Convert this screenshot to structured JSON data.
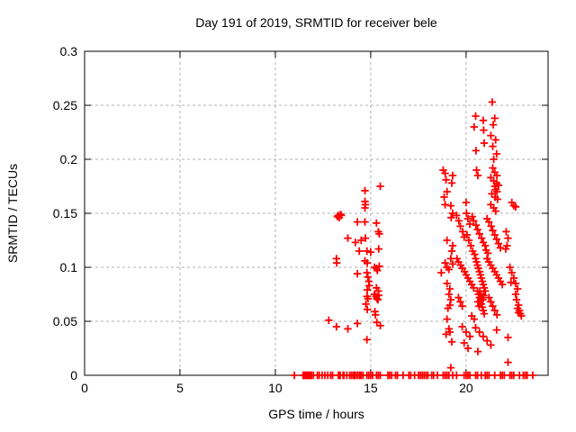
{
  "chart_data": {
    "type": "scatter",
    "title": "Day 191 of 2019, SRMTID for receiver bele",
    "xlabel": "GPS time / hours",
    "ylabel": "SRMTID / TECUs",
    "xlim": [
      0,
      24.3
    ],
    "ylim": [
      0,
      0.3
    ],
    "x_ticks": [
      0,
      5,
      10,
      15,
      20
    ],
    "x_tick_labels": [
      "0",
      "5",
      "10",
      "15",
      "20"
    ],
    "y_ticks": [
      0,
      0.05,
      0.1,
      0.15,
      0.2,
      0.25,
      0.3
    ],
    "y_tick_labels": [
      "0",
      "0.05",
      "0.1",
      "0.15",
      "0.2",
      "0.25",
      "0.3"
    ],
    "grid": true,
    "legend": "none",
    "marker": "plus",
    "marker_color": "#ff0000",
    "points": [
      [
        13.25,
        0.147
      ],
      [
        13.3,
        0.148
      ],
      [
        13.35,
        0.146
      ],
      [
        13.42,
        0.149
      ],
      [
        13.45,
        0.148
      ],
      [
        13.2,
        0.108
      ],
      [
        13.22,
        0.104
      ],
      [
        13.8,
        0.127
      ],
      [
        12.8,
        0.051
      ],
      [
        13.2,
        0.045
      ],
      [
        13.8,
        0.043
      ],
      [
        14.7,
        0.171
      ],
      [
        15.5,
        0.175
      ],
      [
        14.7,
        0.161
      ],
      [
        14.72,
        0.158
      ],
      [
        14.7,
        0.155
      ],
      [
        14.3,
        0.142
      ],
      [
        14.7,
        0.142
      ],
      [
        15.3,
        0.141
      ],
      [
        15.4,
        0.133
      ],
      [
        15.45,
        0.131
      ],
      [
        14.2,
        0.123
      ],
      [
        14.5,
        0.125
      ],
      [
        14.72,
        0.127
      ],
      [
        14.4,
        0.115
      ],
      [
        14.8,
        0.115
      ],
      [
        15.0,
        0.114
      ],
      [
        15.42,
        0.117
      ],
      [
        14.7,
        0.106
      ],
      [
        14.82,
        0.104
      ],
      [
        15.2,
        0.1
      ],
      [
        15.3,
        0.099
      ],
      [
        15.35,
        0.097
      ],
      [
        15.45,
        0.101
      ],
      [
        14.3,
        0.094
      ],
      [
        14.8,
        0.095
      ],
      [
        14.85,
        0.091
      ],
      [
        14.9,
        0.087
      ],
      [
        14.92,
        0.083
      ],
      [
        15.3,
        0.081
      ],
      [
        14.82,
        0.079
      ],
      [
        15.4,
        0.078
      ],
      [
        15.2,
        0.075
      ],
      [
        15.28,
        0.073
      ],
      [
        15.32,
        0.071
      ],
      [
        15.38,
        0.07
      ],
      [
        15.42,
        0.074
      ],
      [
        14.8,
        0.073
      ],
      [
        14.86,
        0.071
      ],
      [
        14.75,
        0.066
      ],
      [
        14.82,
        0.061
      ],
      [
        15.22,
        0.059
      ],
      [
        15.25,
        0.056
      ],
      [
        14.3,
        0.048
      ],
      [
        15.32,
        0.049
      ],
      [
        15.5,
        0.046
      ],
      [
        14.8,
        0.033
      ],
      [
        18.8,
        0.19
      ],
      [
        18.9,
        0.187
      ],
      [
        19.3,
        0.185
      ],
      [
        18.95,
        0.181
      ],
      [
        19.25,
        0.178
      ],
      [
        19.0,
        0.17
      ],
      [
        18.85,
        0.165
      ],
      [
        18.9,
        0.158
      ],
      [
        19.2,
        0.157
      ],
      [
        19.3,
        0.15
      ],
      [
        19.22,
        0.146
      ],
      [
        19.0,
        0.125
      ],
      [
        19.3,
        0.12
      ],
      [
        19.25,
        0.115
      ],
      [
        19.2,
        0.108
      ],
      [
        19.3,
        0.103
      ],
      [
        19.0,
        0.1
      ],
      [
        19.1,
        0.098
      ],
      [
        18.9,
        0.104
      ],
      [
        18.7,
        0.095
      ],
      [
        19.0,
        0.085
      ],
      [
        19.15,
        0.08
      ],
      [
        19.1,
        0.075
      ],
      [
        19.2,
        0.07
      ],
      [
        19.15,
        0.065
      ],
      [
        19.05,
        0.062
      ],
      [
        19.0,
        0.052
      ],
      [
        19.1,
        0.043
      ],
      [
        19.15,
        0.04
      ],
      [
        18.95,
        0.038
      ],
      [
        19.25,
        0.031
      ],
      [
        19.2,
        0.007
      ],
      [
        21.37,
        0.253
      ],
      [
        20.5,
        0.24
      ],
      [
        21.5,
        0.238
      ],
      [
        20.9,
        0.236
      ],
      [
        21.42,
        0.232
      ],
      [
        20.42,
        0.23
      ],
      [
        20.92,
        0.227
      ],
      [
        21.3,
        0.222
      ],
      [
        21.55,
        0.218
      ],
      [
        20.95,
        0.215
      ],
      [
        21.4,
        0.212
      ],
      [
        20.52,
        0.208
      ],
      [
        21.6,
        0.205
      ],
      [
        21.45,
        0.2
      ],
      [
        20.55,
        0.19
      ],
      [
        21.4,
        0.192
      ],
      [
        21.5,
        0.188
      ],
      [
        21.62,
        0.185
      ],
      [
        20.62,
        0.185
      ],
      [
        21.3,
        0.183
      ],
      [
        21.45,
        0.18
      ],
      [
        21.6,
        0.178
      ],
      [
        21.7,
        0.176
      ],
      [
        21.5,
        0.175
      ],
      [
        21.55,
        0.172
      ],
      [
        21.62,
        0.17
      ],
      [
        21.35,
        0.168
      ],
      [
        21.52,
        0.165
      ],
      [
        21.65,
        0.163
      ],
      [
        21.3,
        0.158
      ],
      [
        21.45,
        0.155
      ],
      [
        21.55,
        0.152
      ],
      [
        20.0,
        0.16
      ],
      [
        20.02,
        0.15
      ],
      [
        20.1,
        0.145
      ],
      [
        20.2,
        0.14
      ],
      [
        20.05,
        0.13
      ],
      [
        20.15,
        0.125
      ],
      [
        20.25,
        0.12
      ],
      [
        19.5,
        0.148
      ],
      [
        19.62,
        0.143
      ],
      [
        19.7,
        0.138
      ],
      [
        19.82,
        0.133
      ],
      [
        19.9,
        0.128
      ],
      [
        20.32,
        0.147
      ],
      [
        20.4,
        0.143
      ],
      [
        20.52,
        0.139
      ],
      [
        20.6,
        0.135
      ],
      [
        20.7,
        0.131
      ],
      [
        20.82,
        0.127
      ],
      [
        20.9,
        0.123
      ],
      [
        21.0,
        0.12
      ],
      [
        21.1,
        0.145
      ],
      [
        21.2,
        0.142
      ],
      [
        21.32,
        0.138
      ],
      [
        21.4,
        0.134
      ],
      [
        21.5,
        0.13
      ],
      [
        21.6,
        0.126
      ],
      [
        21.7,
        0.122
      ],
      [
        21.8,
        0.118
      ],
      [
        20.35,
        0.115
      ],
      [
        20.45,
        0.112
      ],
      [
        21.05,
        0.116
      ],
      [
        21.15,
        0.113
      ],
      [
        19.52,
        0.108
      ],
      [
        19.6,
        0.105
      ],
      [
        19.72,
        0.102
      ],
      [
        19.8,
        0.099
      ],
      [
        19.92,
        0.096
      ],
      [
        20.0,
        0.093
      ],
      [
        20.1,
        0.09
      ],
      [
        20.2,
        0.087
      ],
      [
        20.3,
        0.084
      ],
      [
        20.4,
        0.081
      ],
      [
        20.5,
        0.108
      ],
      [
        20.55,
        0.105
      ],
      [
        20.6,
        0.102
      ],
      [
        20.65,
        0.099
      ],
      [
        20.7,
        0.096
      ],
      [
        20.75,
        0.093
      ],
      [
        20.8,
        0.09
      ],
      [
        20.85,
        0.087
      ],
      [
        20.9,
        0.084
      ],
      [
        20.95,
        0.081
      ],
      [
        21.0,
        0.078
      ],
      [
        21.1,
        0.108
      ],
      [
        21.2,
        0.105
      ],
      [
        21.3,
        0.102
      ],
      [
        21.4,
        0.099
      ],
      [
        21.5,
        0.096
      ],
      [
        21.6,
        0.093
      ],
      [
        21.7,
        0.09
      ],
      [
        21.8,
        0.087
      ],
      [
        21.9,
        0.084
      ],
      [
        20.6,
        0.078
      ],
      [
        20.65,
        0.075
      ],
      [
        20.7,
        0.072
      ],
      [
        20.75,
        0.069
      ],
      [
        20.8,
        0.066
      ],
      [
        20.85,
        0.063
      ],
      [
        20.9,
        0.06
      ],
      [
        20.95,
        0.057
      ],
      [
        20.72,
        0.078
      ],
      [
        20.78,
        0.075
      ],
      [
        20.82,
        0.072
      ],
      [
        20.62,
        0.068
      ],
      [
        20.68,
        0.064
      ],
      [
        20.88,
        0.07
      ],
      [
        20.92,
        0.074
      ],
      [
        19.6,
        0.072
      ],
      [
        19.7,
        0.068
      ],
      [
        19.8,
        0.064
      ],
      [
        21.2,
        0.072
      ],
      [
        21.3,
        0.068
      ],
      [
        21.4,
        0.064
      ],
      [
        21.5,
        0.06
      ],
      [
        21.62,
        0.056
      ],
      [
        20.3,
        0.055
      ],
      [
        20.42,
        0.052
      ],
      [
        19.8,
        0.045
      ],
      [
        20.0,
        0.04
      ],
      [
        20.2,
        0.036
      ],
      [
        20.5,
        0.044
      ],
      [
        20.7,
        0.04
      ],
      [
        20.9,
        0.036
      ],
      [
        21.1,
        0.032
      ],
      [
        21.3,
        0.028
      ],
      [
        20.1,
        0.025
      ],
      [
        21.6,
        0.042
      ],
      [
        19.9,
        0.03
      ],
      [
        20.62,
        0.022
      ],
      [
        22.4,
        0.16
      ],
      [
        22.5,
        0.157
      ],
      [
        22.6,
        0.156
      ],
      [
        22.1,
        0.133
      ],
      [
        22.2,
        0.127
      ],
      [
        22.15,
        0.12
      ],
      [
        22.08,
        0.117
      ],
      [
        22.3,
        0.1
      ],
      [
        22.35,
        0.086
      ],
      [
        22.4,
        0.095
      ],
      [
        22.5,
        0.09
      ],
      [
        22.6,
        0.085
      ],
      [
        22.6,
        0.075
      ],
      [
        22.65,
        0.07
      ],
      [
        22.7,
        0.08
      ],
      [
        22.7,
        0.062
      ],
      [
        22.75,
        0.065
      ],
      [
        22.75,
        0.058
      ],
      [
        22.8,
        0.06
      ],
      [
        22.85,
        0.057
      ],
      [
        22.9,
        0.055
      ],
      [
        22.2,
        0.035
      ],
      [
        22.2,
        0.012
      ],
      [
        11.0,
        0
      ],
      [
        11.45,
        0
      ],
      [
        11.5,
        0
      ],
      [
        11.55,
        0
      ],
      [
        11.6,
        0
      ],
      [
        11.65,
        0
      ],
      [
        11.7,
        0
      ],
      [
        11.75,
        0
      ],
      [
        11.8,
        0
      ],
      [
        11.85,
        0
      ],
      [
        11.9,
        0
      ],
      [
        12.0,
        0
      ],
      [
        12.2,
        0
      ],
      [
        12.3,
        0
      ],
      [
        12.45,
        0
      ],
      [
        12.6,
        0
      ],
      [
        12.75,
        0
      ],
      [
        12.9,
        0
      ],
      [
        13.0,
        0
      ],
      [
        13.3,
        0
      ],
      [
        13.35,
        0
      ],
      [
        13.4,
        0
      ],
      [
        13.55,
        0
      ],
      [
        13.6,
        0
      ],
      [
        13.75,
        0
      ],
      [
        13.9,
        0
      ],
      [
        14.0,
        0
      ],
      [
        14.1,
        0
      ],
      [
        14.15,
        0
      ],
      [
        14.2,
        0
      ],
      [
        14.3,
        0
      ],
      [
        14.4,
        0
      ],
      [
        14.45,
        0
      ],
      [
        14.5,
        0
      ],
      [
        14.6,
        0
      ],
      [
        14.8,
        0
      ],
      [
        14.9,
        0
      ],
      [
        15.0,
        0
      ],
      [
        15.1,
        0
      ],
      [
        15.3,
        0
      ],
      [
        15.4,
        0
      ],
      [
        15.5,
        0
      ],
      [
        15.9,
        0
      ],
      [
        16.0,
        0
      ],
      [
        16.1,
        0
      ],
      [
        16.3,
        0
      ],
      [
        16.4,
        0
      ],
      [
        16.7,
        0
      ],
      [
        17.0,
        0
      ],
      [
        17.1,
        0
      ],
      [
        17.3,
        0
      ],
      [
        17.5,
        0
      ],
      [
        17.6,
        0
      ],
      [
        17.7,
        0
      ],
      [
        17.8,
        0
      ],
      [
        17.9,
        0
      ],
      [
        18.0,
        0
      ],
      [
        18.2,
        0
      ],
      [
        18.3,
        0
      ],
      [
        18.5,
        0
      ],
      [
        18.8,
        0
      ],
      [
        18.9,
        0
      ],
      [
        19.0,
        0
      ],
      [
        19.1,
        0
      ],
      [
        19.3,
        0
      ],
      [
        19.5,
        0
      ],
      [
        19.9,
        0
      ],
      [
        20.0,
        0
      ],
      [
        20.1,
        0
      ],
      [
        20.2,
        0
      ],
      [
        20.5,
        0
      ],
      [
        20.6,
        0
      ],
      [
        20.8,
        0
      ],
      [
        21.0,
        0
      ],
      [
        21.1,
        0
      ],
      [
        21.2,
        0
      ],
      [
        21.5,
        0
      ],
      [
        21.8,
        0
      ],
      [
        21.9,
        0
      ],
      [
        22.0,
        0
      ],
      [
        22.3,
        0
      ],
      [
        22.4,
        0
      ],
      [
        22.5,
        0
      ],
      [
        22.8,
        0
      ],
      [
        23.0,
        0
      ],
      [
        23.1,
        0
      ],
      [
        23.2,
        0
      ],
      [
        23.5,
        0
      ]
    ]
  }
}
